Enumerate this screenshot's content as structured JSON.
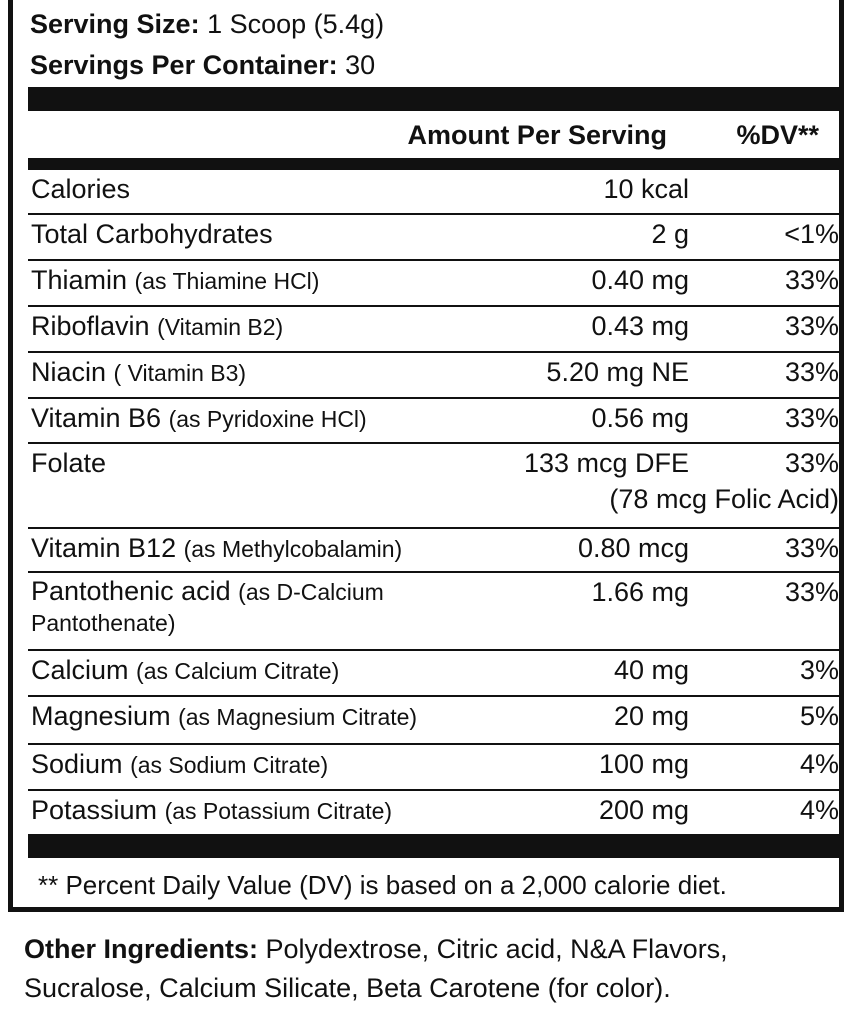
{
  "serving": {
    "size_label": "Serving Size:",
    "size_value": " 1 Scoop (5.4g)",
    "per_container_label": "Servings Per Container:",
    "per_container_value": " 30"
  },
  "header": {
    "amount": "Amount Per Serving",
    "dv": "%DV**"
  },
  "rows": [
    {
      "name": "Calories",
      "note": "",
      "amount": "10 kcal",
      "dv": ""
    },
    {
      "name": "Total Carbohydrates",
      "note": "",
      "amount": "2 g",
      "dv": "<1%"
    },
    {
      "name": "Thiamin",
      "note": "(as Thiamine HCl)",
      "amount": "0.40 mg",
      "dv": "33%"
    },
    {
      "name": "Riboflavin",
      "note": "(Vitamin B2)",
      "amount": "0.43 mg",
      "dv": "33%"
    },
    {
      "name": "Niacin",
      "note": "( Vitamin B3)",
      "amount": "5.20 mg NE",
      "dv": "33%"
    },
    {
      "name": "Vitamin B6",
      "note": "(as Pyridoxine HCl)",
      "amount": "0.56 mg",
      "dv": "33%"
    },
    {
      "name": "Folate",
      "note": "",
      "amount": "133 mcg DFE",
      "dv": "33%",
      "subnote": "(78 mcg Folic Acid)"
    },
    {
      "name": "Vitamin B12",
      "note": "(as Methylcobalamin)",
      "amount": "0.80 mcg",
      "dv": "33%"
    },
    {
      "name": "Pantothenic acid",
      "note": "(as D-Calcium Pantothenate)",
      "amount": "1.66 mg",
      "dv": "33%"
    },
    {
      "name": "Calcium",
      "note": "(as Calcium Citrate)",
      "amount": "40 mg",
      "dv": "3%"
    },
    {
      "name": "Magnesium",
      "note": "(as Magnesium Citrate)",
      "amount": "20 mg",
      "dv": "5%"
    },
    {
      "name": "Sodium",
      "note": "(as Sodium Citrate)",
      "amount": "100 mg",
      "dv": "4%"
    },
    {
      "name": "Potassium",
      "note": "(as Potassium Citrate)",
      "amount": "200 mg",
      "dv": "4%"
    }
  ],
  "footnote": "** Percent Daily Value (DV) is based on a 2,000 calorie diet.",
  "ingredients": {
    "label": "Other Ingredients:",
    "text": " Polydextrose, Citric acid, N&A Flavors, Sucralose, Calcium Silicate, Beta Carotene (for color)."
  }
}
